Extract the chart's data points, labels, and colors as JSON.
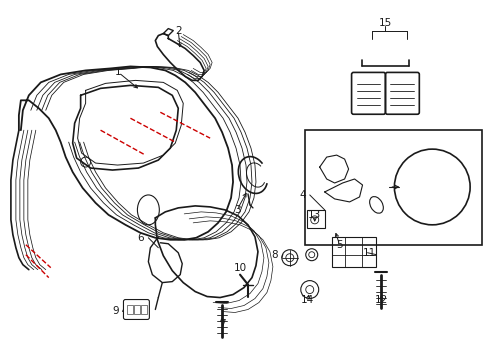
{
  "background_color": "#ffffff",
  "line_color": "#1a1a1a",
  "red_color": "#cc0000",
  "fig_width": 4.89,
  "fig_height": 3.6,
  "dpi": 100,
  "label_fontsize": 7.5
}
